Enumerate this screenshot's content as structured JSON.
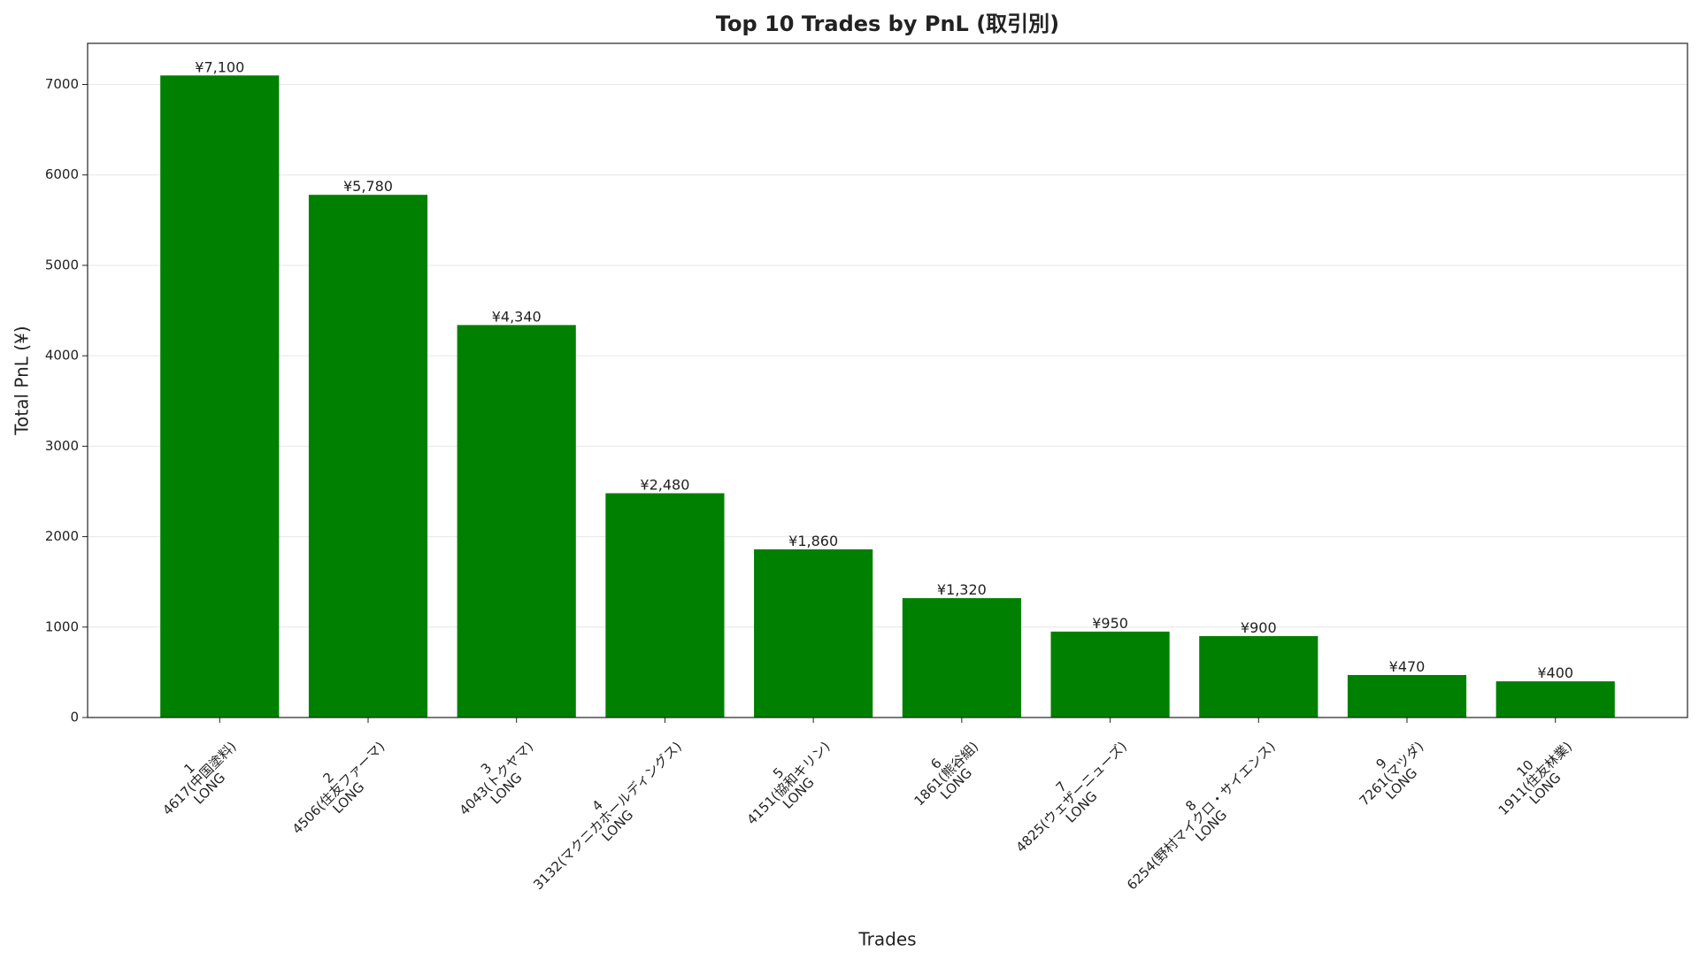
{
  "chart_data": {
    "type": "bar",
    "title": "Top 10 Trades by PnL (取引別)",
    "xlabel": "Trades",
    "ylabel": "Total PnL (¥)",
    "categories": [
      "1\n4617(中国塗料)\nLONG",
      "2\n4506(住友ファーマ)\nLONG",
      "3\n4043(トクヤマ)\nLONG",
      "4\n3132(マクニカホールディングス)\nLONG",
      "5\n4151(協和キリン)\nLONG",
      "6\n1861(熊谷組)\nLONG",
      "7\n4825(ウェザーニューズ)\nLONG",
      "8\n6254(野村マイクロ・サイエンス)\nLONG",
      "9\n7261(マツダ)\nLONG",
      "10\n1911(住友林業)\nLONG"
    ],
    "values": [
      7100,
      5780,
      4340,
      2480,
      1860,
      1320,
      950,
      900,
      470,
      400
    ],
    "value_labels": [
      "¥7,100",
      "¥5,780",
      "¥4,340",
      "¥2,480",
      "¥1,860",
      "¥1,320",
      "¥950",
      "¥900",
      "¥470",
      "¥400"
    ],
    "color": "#008000",
    "ylim": [
      0,
      7455
    ],
    "yticks": [
      0,
      1000,
      2000,
      3000,
      4000,
      5000,
      6000,
      7000
    ],
    "grid": true
  }
}
